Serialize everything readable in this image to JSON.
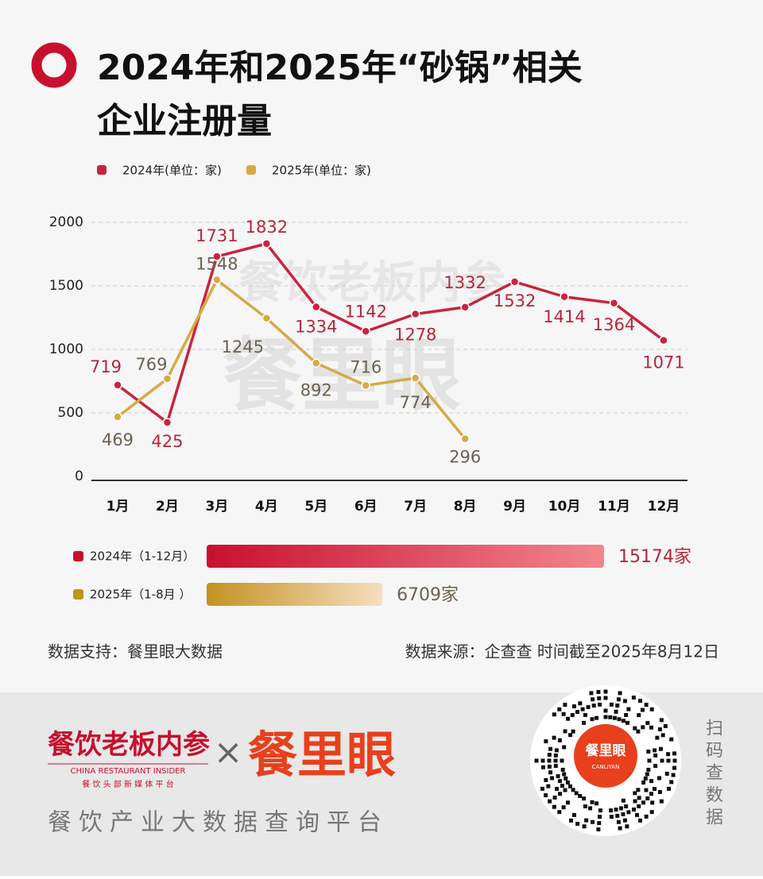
{
  "title_line1": "2024年和2025年“砂锅”相关",
  "title_line2": "企业注册量",
  "chart_data": {
    "type": "line",
    "categories": [
      "1月",
      "2月",
      "3月",
      "4月",
      "5月",
      "6月",
      "7月",
      "8月",
      "9月",
      "10月",
      "11月",
      "12月"
    ],
    "series": [
      {
        "name": "2024年(单位：家)",
        "color": "#c9243f",
        "label_color": "#b5263a",
        "values": [
          719,
          425,
          1731,
          1832,
          1334,
          1142,
          1278,
          1332,
          1532,
          1414,
          1364,
          1071
        ]
      },
      {
        "name": "2025年(单位：家)",
        "color": "#d6aa45",
        "label_color": "#6b6250",
        "values": [
          469,
          769,
          1548,
          1245,
          892,
          716,
          774,
          296,
          null,
          null,
          null,
          null
        ]
      }
    ],
    "ylim": [
      0,
      2000
    ],
    "yticks": [
      0,
      500,
      1000,
      1500,
      2000
    ],
    "grid": true
  },
  "totals": [
    {
      "label": "2024年（1-12月）",
      "value": 15174,
      "value_label": "15174家",
      "colors": [
        "#c8102e",
        "#f2868c"
      ],
      "label_color": "#b5263a"
    },
    {
      "label": "2025年（1-8月 ）",
      "value": 6709,
      "value_label": "6709家",
      "colors": [
        "#c39220",
        "#f6dfc0"
      ],
      "label_color": "#6b6250"
    }
  ],
  "source_left": "数据支持：餐里眼大数据",
  "source_right": "数据来源：企查查 时间截至2025年8月12日",
  "watermark": {
    "brand": "餐饮老板内参",
    "app": "餐里眼"
  },
  "footer": {
    "brand": "餐饮老板内参",
    "brand_en": "CHINA RESTAURANT INSIDER",
    "brand_sub": "餐 饮 头 部 新 媒 体 平 台",
    "cross": "×",
    "app": "餐里眼",
    "slogan": "餐饮产业大数据查询平台",
    "qr_title": "餐里眼",
    "qr_en": "CANLIYAN",
    "scan": "扫码查数据"
  }
}
